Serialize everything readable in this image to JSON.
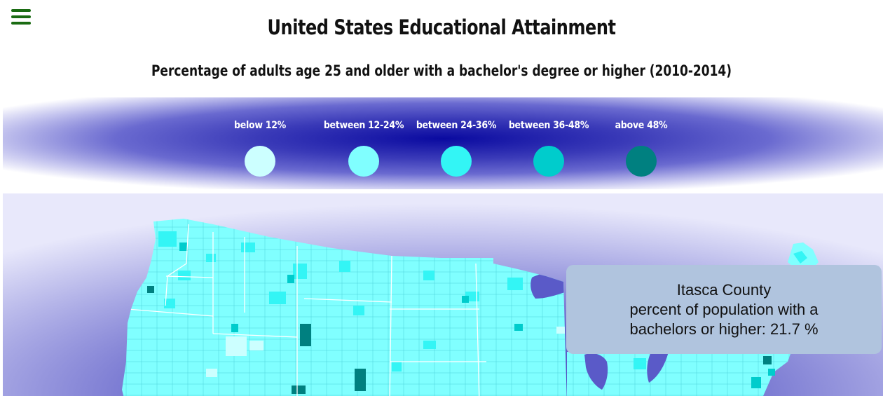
{
  "header": {
    "title": "United States Educational Attainment",
    "subtitle": "Percentage of adults age 25 and older with a bachelor's degree or higher (2010-2014)"
  },
  "legend": [
    {
      "label": "below 12%",
      "color": "#ccffff"
    },
    {
      "label": "between 12-24%",
      "color": "#80ffff"
    },
    {
      "label": "between 24-36%",
      "color": "#33f5f5"
    },
    {
      "label": "between 36-48%",
      "color": "#00cccc"
    },
    {
      "label": "above 48%",
      "color": "#008080"
    }
  ],
  "tooltip": {
    "county": "Itasca County",
    "line1": "percent of population with a",
    "line2": "bachelors or higher: 21.7 %"
  },
  "icons": {
    "menu": "hamburger-menu-icon"
  }
}
